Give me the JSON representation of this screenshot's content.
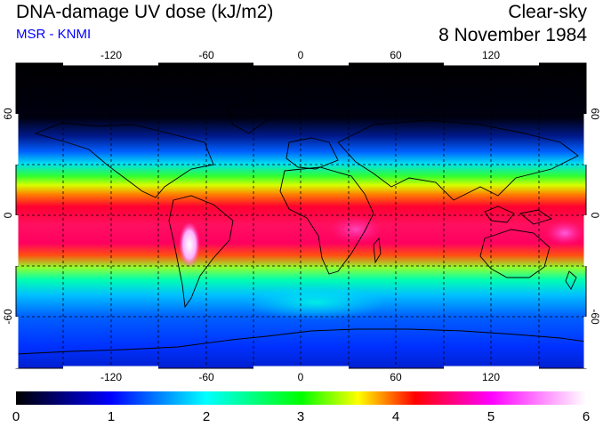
{
  "header": {
    "title": "DNA-damage UV dose (kJ/m2)",
    "subtitle": "MSR - KNMI",
    "sky_condition": "Clear-sky",
    "date": "8 November 1984"
  },
  "map": {
    "projection": "equirectangular",
    "lon_range": [
      -180,
      180
    ],
    "lat_range": [
      -90,
      90
    ],
    "lon_ticks": [
      "-120",
      "-60",
      "0",
      "60",
      "120"
    ],
    "lat_ticks": [
      "60",
      "0",
      "-60"
    ],
    "grid": "dashed 30-degree"
  },
  "colorbar": {
    "labels": [
      "0",
      "1",
      "2",
      "3",
      "4",
      "5",
      "6"
    ],
    "colors": [
      "#000000",
      "#0000ff",
      "#00ffff",
      "#00ff00",
      "#ffff00",
      "#ff0000",
      "#ff00ff",
      "#ffffff"
    ]
  },
  "colors": {
    "subtitle": "#0000ff"
  }
}
